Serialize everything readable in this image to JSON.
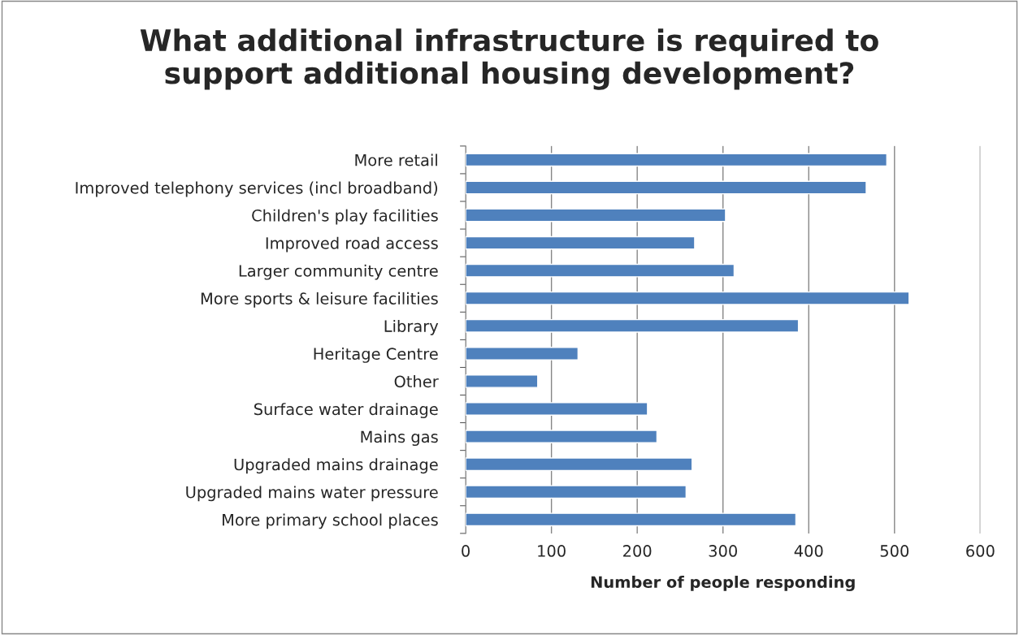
{
  "chart_data": {
    "type": "bar",
    "orientation": "horizontal",
    "title": "What additional infrastructure is required to\nsupport additional housing development?",
    "xlabel": "Number of people responding",
    "categories": [
      "More retail",
      "Improved telephony services (incl broadband)",
      "Children's play facilities",
      "Improved road access",
      "Larger community centre",
      "More sports & leisure facilities",
      "Library",
      "Heritage Centre",
      "Other",
      "Surface water drainage",
      "Mains gas",
      "Upgraded mains drainage",
      "Upgraded mains water pressure",
      "More primary school places"
    ],
    "values": [
      491,
      467,
      303,
      267,
      313,
      517,
      388,
      131,
      84,
      212,
      223,
      264,
      257,
      385
    ],
    "color": "#4f81bd",
    "xlim": [
      0,
      600
    ],
    "xticks": [
      0,
      100,
      200,
      300,
      400,
      500,
      600
    ],
    "grid": "x",
    "legend": false
  }
}
